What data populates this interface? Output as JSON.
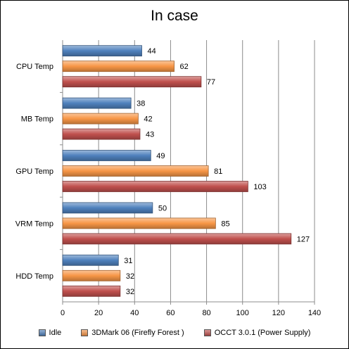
{
  "chart_data": {
    "type": "bar",
    "orientation": "horizontal",
    "title": "In case",
    "categories": [
      "CPU Temp",
      "MB Temp",
      "GPU Temp",
      "VRM Temp",
      "HDD Temp"
    ],
    "series": [
      {
        "name": "Idle",
        "color": "#4f81bd",
        "values": [
          44,
          38,
          49,
          50,
          31
        ]
      },
      {
        "name": "3DMark 06 (Firefly Forest )",
        "color": "#f79646",
        "values": [
          62,
          42,
          81,
          85,
          32
        ]
      },
      {
        "name": "OCCT 3.0.1 (Power Supply)",
        "color": "#c0504d",
        "values": [
          77,
          43,
          103,
          127,
          32
        ]
      }
    ],
    "xlim": [
      0,
      140
    ],
    "xticks": [
      0,
      20,
      40,
      60,
      80,
      100,
      120,
      140
    ],
    "grid": true,
    "legend_position": "bottom"
  }
}
